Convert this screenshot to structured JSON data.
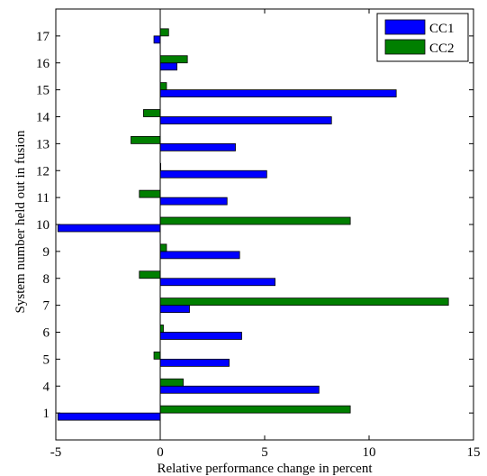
{
  "chart_data": {
    "type": "bar",
    "orientation": "horizontal",
    "categories": [
      "1",
      "4",
      "5",
      "6",
      "7",
      "8",
      "9",
      "10",
      "11",
      "12",
      "13",
      "14",
      "15",
      "16",
      "17"
    ],
    "series": [
      {
        "name": "CC1",
        "color": "#0000ff",
        "values": [
          -4.9,
          7.6,
          3.3,
          3.9,
          1.4,
          5.5,
          3.8,
          -4.9,
          3.2,
          5.1,
          3.6,
          8.2,
          11.3,
          0.8,
          -0.3
        ]
      },
      {
        "name": "CC2",
        "color": "#007f00",
        "values": [
          9.1,
          1.1,
          -0.3,
          0.15,
          13.8,
          -1.0,
          0.3,
          9.1,
          -1.0,
          0.0,
          -1.4,
          -0.8,
          0.3,
          1.3,
          0.4
        ]
      }
    ],
    "xlabel": "Relative performance change in percent",
    "ylabel": "System number held out in fusion",
    "xlim": [
      -5,
      15
    ],
    "xticks": [
      "-5",
      "0",
      "5",
      "10",
      "15"
    ],
    "grid": false,
    "legend_position": "top-right"
  }
}
